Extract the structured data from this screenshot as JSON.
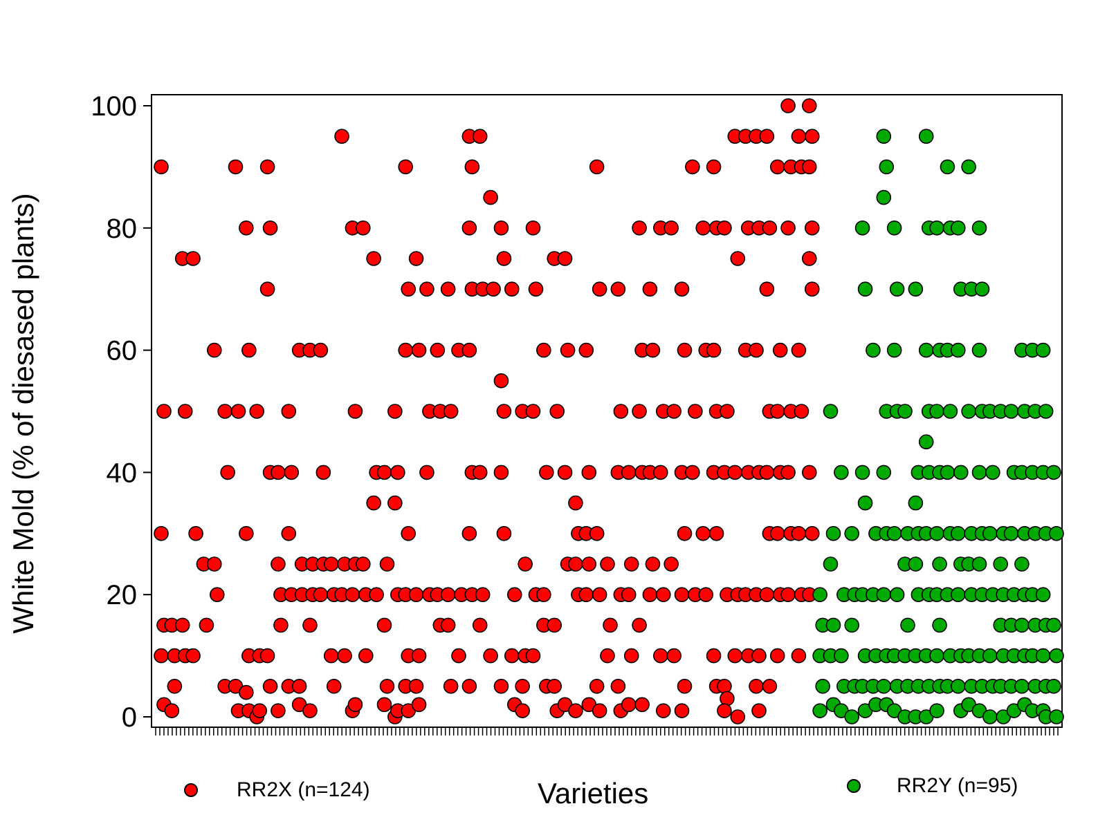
{
  "chart_data": {
    "type": "scatter",
    "title": "",
    "xlabel": "Varieties",
    "ylabel": "White Mold (% of diesased plants)",
    "ylim": [
      0,
      100
    ],
    "yticks": [
      0,
      20,
      40,
      60,
      80,
      100
    ],
    "grid": false,
    "legend": "bottom",
    "series": [
      {
        "name": "RR2X (n=124)",
        "color": "#ff0000",
        "values": [
          [
            90,
            50,
            30,
            15,
            10,
            2
          ],
          [
            15,
            10,
            1,
            5
          ],
          [
            75,
            50,
            15,
            10
          ],
          [
            75,
            30,
            10
          ],
          [
            25,
            15
          ],
          [
            60,
            20,
            25
          ],
          [
            50,
            40,
            5
          ],
          [
            90,
            50,
            5,
            1
          ],
          [
            80,
            60,
            30,
            10,
            4,
            1
          ],
          [
            50,
            10,
            0,
            1
          ],
          [
            90,
            80,
            70,
            40,
            10,
            5
          ],
          [
            40,
            20,
            25,
            15,
            1
          ],
          [
            50,
            40,
            30,
            20,
            5
          ],
          [
            60,
            20,
            5,
            25,
            2
          ],
          [
            60,
            25,
            15,
            20,
            1
          ],
          [
            60,
            40,
            20,
            25
          ],
          [
            25,
            20,
            10,
            5
          ],
          [
            95,
            25,
            20,
            10
          ],
          [
            80,
            50,
            20,
            25,
            1,
            2
          ],
          [
            80,
            20,
            25,
            10
          ],
          [
            75,
            40,
            35,
            20
          ],
          [
            40,
            25,
            15,
            5,
            2
          ],
          [
            50,
            40,
            35,
            20,
            0,
            1
          ],
          [
            90,
            70,
            60,
            30,
            20,
            10,
            5,
            1
          ],
          [
            75,
            60,
            20,
            10,
            5,
            2
          ],
          [
            70,
            50,
            40,
            20
          ],
          [
            60,
            50,
            20,
            15
          ],
          [
            70,
            50,
            20,
            5,
            15
          ],
          [
            60,
            20,
            10
          ],
          [
            95,
            90,
            80,
            70,
            60,
            40,
            30,
            20,
            5
          ],
          [
            95,
            70,
            40,
            20,
            15
          ],
          [
            85,
            70,
            10
          ],
          [
            80,
            75,
            55,
            50,
            40,
            30,
            5
          ],
          [
            70,
            20,
            10,
            2
          ],
          [
            50,
            25,
            5,
            10,
            1
          ],
          [
            80,
            70,
            50,
            20,
            10
          ],
          [
            60,
            40,
            20,
            5,
            15
          ],
          [
            75,
            50,
            15,
            1,
            5
          ],
          [
            75,
            60,
            40,
            25,
            2
          ],
          [
            35,
            30,
            25,
            20,
            1
          ],
          [
            60,
            40,
            30,
            25,
            20,
            2
          ],
          [
            90,
            70,
            30,
            20,
            5,
            1
          ],
          [
            25,
            15,
            10
          ],
          [
            70,
            50,
            40,
            20,
            5,
            1
          ],
          [
            40,
            25,
            20,
            10,
            2
          ],
          [
            80,
            60,
            50,
            40,
            15,
            2
          ],
          [
            70,
            60,
            40,
            25,
            20
          ],
          [
            80,
            50,
            40,
            20,
            10,
            1
          ],
          [
            80,
            50,
            25,
            10
          ],
          [
            70,
            60,
            40,
            30,
            20,
            5,
            1
          ],
          [
            90,
            50,
            40,
            20
          ],
          [
            80,
            60,
            30,
            20
          ],
          [
            90,
            80,
            60,
            50,
            40,
            30,
            10,
            5
          ],
          [
            80,
            50,
            40,
            20,
            5,
            3,
            1
          ],
          [
            95,
            75,
            40,
            20,
            10,
            0
          ],
          [
            95,
            80,
            60,
            40,
            20,
            10
          ],
          [
            95,
            80,
            60,
            40,
            20,
            10,
            5,
            1
          ],
          [
            95,
            80,
            70,
            50,
            40,
            30,
            20,
            5
          ],
          [
            90,
            60,
            50,
            40,
            30,
            20,
            10
          ],
          [
            100,
            90,
            80,
            50,
            40,
            30,
            20
          ],
          [
            95,
            90,
            60,
            50,
            30,
            20,
            10
          ],
          [
            100,
            95,
            90,
            80,
            75,
            70,
            40,
            30,
            20
          ]
        ]
      },
      {
        "name": "RR2Y (n=95)",
        "color": "#00aa00",
        "values": [
          [
            20,
            15,
            10,
            5,
            1
          ],
          [
            50,
            30,
            25,
            15,
            10,
            2
          ],
          [
            40,
            20,
            10,
            5,
            1
          ],
          [
            30,
            20,
            15,
            5,
            0
          ],
          [
            80,
            70,
            40,
            35,
            20,
            10,
            5,
            1
          ],
          [
            60,
            30,
            20,
            10,
            5,
            2
          ],
          [
            95,
            90,
            85,
            50,
            40,
            30,
            20,
            10,
            5,
            2
          ],
          [
            80,
            70,
            60,
            50,
            30,
            20,
            10,
            5,
            1
          ],
          [
            50,
            30,
            25,
            15,
            10,
            5,
            0
          ],
          [
            70,
            40,
            35,
            30,
            25,
            20,
            10,
            5,
            0
          ],
          [
            95,
            80,
            60,
            50,
            45,
            40,
            30,
            20,
            10,
            5,
            0
          ],
          [
            80,
            60,
            50,
            40,
            30,
            25,
            20,
            15,
            10,
            5,
            1
          ],
          [
            90,
            80,
            60,
            50,
            40,
            30,
            20,
            10,
            5
          ],
          [
            80,
            70,
            60,
            40,
            30,
            25,
            20,
            10,
            5,
            1
          ],
          [
            90,
            70,
            50,
            30,
            25,
            20,
            10,
            5,
            2
          ],
          [
            80,
            70,
            60,
            50,
            40,
            30,
            25,
            20,
            10,
            5,
            1
          ],
          [
            50,
            40,
            30,
            20,
            10,
            5,
            0
          ],
          [
            50,
            30,
            25,
            20,
            15,
            10,
            5,
            0
          ],
          [
            50,
            40,
            30,
            20,
            15,
            10,
            5,
            1
          ],
          [
            60,
            50,
            40,
            30,
            25,
            20,
            15,
            10,
            5,
            2
          ],
          [
            60,
            50,
            40,
            30,
            20,
            15,
            10,
            5,
            1
          ],
          [
            60,
            50,
            40,
            30,
            20,
            15,
            10,
            5,
            1,
            0
          ],
          [
            40,
            30,
            15,
            10,
            5,
            0
          ]
        ]
      }
    ]
  }
}
